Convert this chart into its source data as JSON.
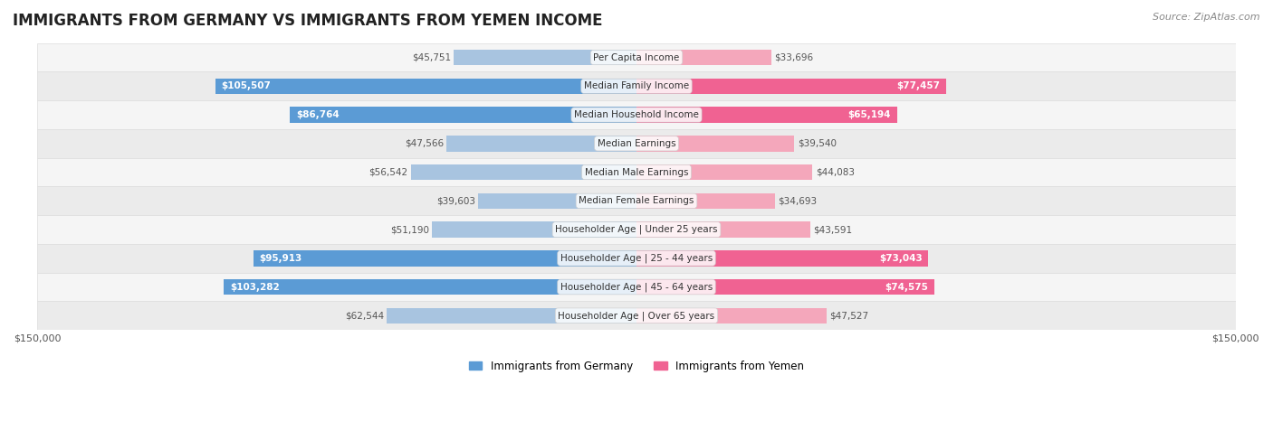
{
  "title": "IMMIGRANTS FROM GERMANY VS IMMIGRANTS FROM YEMEN INCOME",
  "source": "Source: ZipAtlas.com",
  "categories": [
    "Per Capita Income",
    "Median Family Income",
    "Median Household Income",
    "Median Earnings",
    "Median Male Earnings",
    "Median Female Earnings",
    "Householder Age | Under 25 years",
    "Householder Age | 25 - 44 years",
    "Householder Age | 45 - 64 years",
    "Householder Age | Over 65 years"
  ],
  "germany_values": [
    45751,
    105507,
    86764,
    47566,
    56542,
    39603,
    51190,
    95913,
    103282,
    62544
  ],
  "yemen_values": [
    33696,
    77457,
    65194,
    39540,
    44083,
    34693,
    43591,
    73043,
    74575,
    47527
  ],
  "germany_labels": [
    "$45,751",
    "$105,507",
    "$86,764",
    "$47,566",
    "$56,542",
    "$39,603",
    "$51,190",
    "$95,913",
    "$103,282",
    "$62,544"
  ],
  "yemen_labels": [
    "$33,696",
    "$77,457",
    "$65,194",
    "$39,540",
    "$44,083",
    "$34,693",
    "$43,591",
    "$73,043",
    "$74,575",
    "$47,527"
  ],
  "max_value": 150000,
  "germany_bar_color_light": "#a8c4e0",
  "germany_bar_color_dark": "#5b9bd5",
  "yemen_bar_color_light": "#f4a7bb",
  "yemen_bar_color_dark": "#f06292",
  "label_color_light": "#555555",
  "label_color_dark": "#ffffff",
  "bg_color": "#f5f5f5",
  "row_bg_color": "#f0f0f0",
  "legend_germany": "Immigrants from Germany",
  "legend_yemen": "Immigrants from Yemen",
  "germany_threshold": 80000,
  "yemen_threshold": 60000
}
